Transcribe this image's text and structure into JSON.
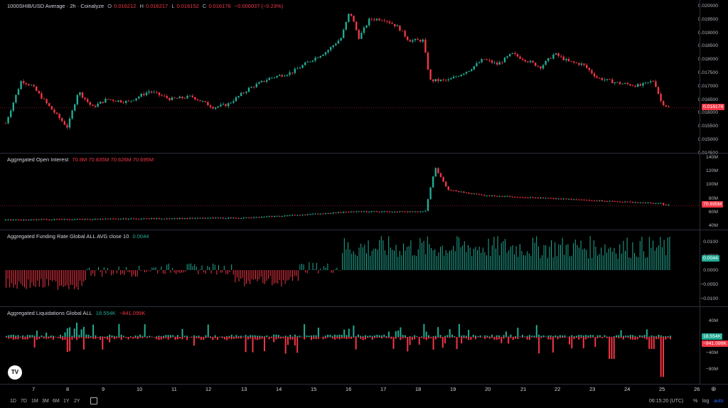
{
  "price_pane": {
    "title": "1000SHIB/USD Average · 2h · Coinalyze",
    "o_label": "O",
    "o_value": "0.016212",
    "h_label": "H",
    "h_value": "0.016217",
    "l_label": "L",
    "l_value": "0.016152",
    "c_label": "C",
    "c_value": "0.016176",
    "change": "−0.000037 (−0.23%)",
    "axis": [
      "0.020000",
      "0.019500",
      "0.019000",
      "0.018500",
      "0.018000",
      "0.017500",
      "0.017000",
      "0.016500",
      "0.016000",
      "0.015500",
      "0.015000",
      "0.014500"
    ],
    "last_price": "0.016176"
  },
  "oi_pane": {
    "title": "Aggregated Open Interest",
    "values": "70.8M  70.835M  70.626M  70.695M",
    "axis": [
      "140M",
      "120M",
      "100M",
      "80M",
      "60M",
      "40M"
    ],
    "last_value": "70.695M"
  },
  "funding_pane": {
    "title": "Aggregated Funding Rate Global ALL AVG close 10",
    "value": "0.0044",
    "axis": [
      "0.0100",
      "0.0050",
      "0.0000",
      "−0.0050",
      "−0.0100"
    ],
    "last_value": "0.0044"
  },
  "liq_pane": {
    "title": "Aggregated Liquidations Global ALL",
    "value_green": "18.554K",
    "value_red": "−841.099K",
    "axis": [
      "40M",
      "0",
      "−40M",
      "−80M"
    ],
    "last_green": "18.554K",
    "last_red": "−841.099K"
  },
  "time_axis": [
    "7",
    "8",
    "9",
    "10",
    "11",
    "12",
    "13",
    "14",
    "15",
    "16",
    "17",
    "18",
    "19",
    "20",
    "21",
    "22",
    "23",
    "24",
    "25",
    "26"
  ],
  "timeframes": [
    "1D",
    "7D",
    "1M",
    "3M",
    "6M",
    "1Y",
    "2Y"
  ],
  "clock": "06:15:20 (UTC)",
  "percent_btn": "%",
  "log_btn": "log",
  "auto_btn": "auto",
  "logo": "TV",
  "colors": {
    "up": "#22ab94",
    "down": "#f23645",
    "bg": "#000000",
    "grid": "#2a2e39"
  }
}
